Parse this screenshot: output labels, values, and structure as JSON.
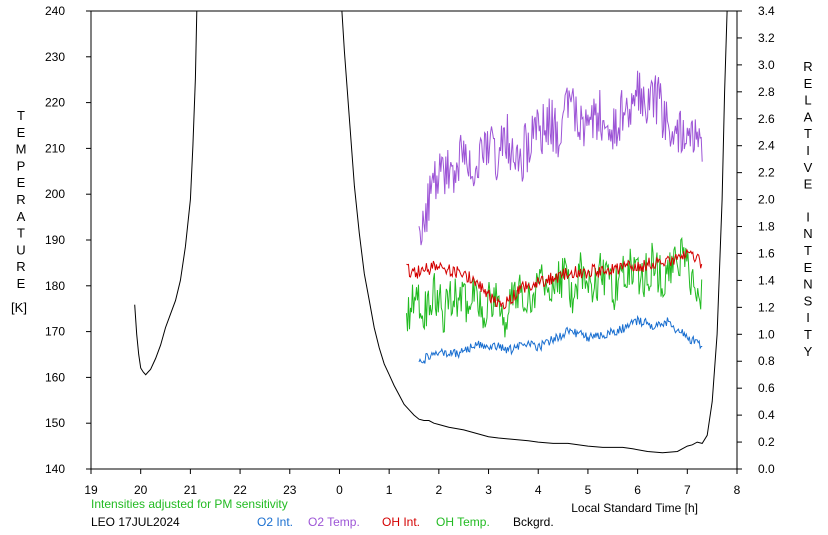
{
  "chart_data": {
    "type": "line",
    "xlabel": "Local Standard Time [h]",
    "ylabel_left": "TEMPERATURE",
    "ylabel_left_unit": "[K]",
    "ylabel_right": "RELATIVE INTENSITY",
    "x_ticks": [
      19,
      20,
      21,
      22,
      23,
      0,
      1,
      2,
      3,
      4,
      5,
      6,
      7,
      8
    ],
    "x_tick_labels": [
      "19",
      "20",
      "21",
      "22",
      "23",
      "0",
      "1",
      "2",
      "3",
      "4",
      "5",
      "6",
      "7",
      "8"
    ],
    "xlim": [
      19,
      32
    ],
    "ylim_left": [
      140,
      240
    ],
    "y_ticks_left": [
      140,
      150,
      160,
      170,
      180,
      190,
      200,
      210,
      220,
      230,
      240
    ],
    "ylim_right": [
      0.0,
      3.4
    ],
    "y_ticks_right": [
      "0.0",
      "0.2",
      "0.4",
      "0.6",
      "0.8",
      "1.0",
      "1.2",
      "1.4",
      "1.6",
      "1.8",
      "2.0",
      "2.2",
      "2.4",
      "2.6",
      "2.8",
      "3.0",
      "3.2",
      "3.4"
    ],
    "note": "Intensities adjusted for PM sensitivity",
    "station": "LEO 17JUL2024",
    "legend": [
      {
        "name": "O2 Int.",
        "color": "#1a6fd0"
      },
      {
        "name": "O2 Temp.",
        "color": "#9d55d6"
      },
      {
        "name": "OH Int.",
        "color": "#d40000"
      },
      {
        "name": "OH Temp.",
        "color": "#22bb22"
      },
      {
        "name": "Bckgrd.",
        "color": "#000000"
      }
    ],
    "series": [
      {
        "name": "Bckgrd.",
        "axis": "right",
        "color": "#000000",
        "x": [
          19.88,
          19.92,
          19.96,
          20.0,
          20.05,
          20.1,
          20.15,
          20.2,
          20.3,
          20.4,
          20.5,
          20.6,
          20.7,
          20.8,
          20.9,
          21.0,
          21.05,
          21.1,
          21.13,
          24.05,
          24.1,
          24.2,
          24.3,
          24.4,
          24.5,
          24.6,
          24.7,
          24.8,
          24.9,
          25.0,
          25.1,
          25.2,
          25.3,
          25.4,
          25.5,
          25.6,
          25.7,
          25.8,
          25.9,
          26.0,
          26.2,
          26.5,
          26.8,
          27.0,
          27.2,
          27.5,
          27.8,
          28.0,
          28.3,
          28.6,
          29.0,
          29.3,
          29.5,
          29.7,
          29.9,
          30.2,
          30.5,
          30.8,
          31.0,
          31.1,
          31.2,
          31.3,
          31.4,
          31.5,
          31.6,
          31.7,
          31.75,
          31.8
        ],
        "y": [
          1.22,
          1.0,
          0.85,
          0.75,
          0.72,
          0.7,
          0.72,
          0.74,
          0.82,
          0.92,
          1.05,
          1.15,
          1.25,
          1.4,
          1.65,
          2.0,
          2.4,
          2.9,
          3.4,
          3.4,
          3.1,
          2.6,
          2.1,
          1.75,
          1.45,
          1.25,
          1.05,
          0.9,
          0.78,
          0.7,
          0.62,
          0.55,
          0.48,
          0.44,
          0.4,
          0.37,
          0.36,
          0.36,
          0.34,
          0.33,
          0.31,
          0.29,
          0.26,
          0.24,
          0.23,
          0.22,
          0.21,
          0.2,
          0.19,
          0.19,
          0.17,
          0.16,
          0.16,
          0.16,
          0.15,
          0.13,
          0.12,
          0.13,
          0.17,
          0.18,
          0.2,
          0.19,
          0.25,
          0.5,
          1.0,
          2.0,
          2.8,
          3.4
        ]
      },
      {
        "name": "O2 Temp.",
        "axis": "left",
        "color": "#9d55d6",
        "x": [
          25.6,
          25.7,
          25.8,
          26.0,
          26.2,
          26.4,
          26.6,
          26.8,
          27.0,
          27.2,
          27.4,
          27.6,
          27.8,
          28.0,
          28.2,
          28.4,
          28.6,
          28.8,
          29.0,
          29.2,
          29.4,
          29.6,
          29.8,
          30.0,
          30.2,
          30.4,
          30.6,
          30.8,
          31.0,
          31.2,
          31.3
        ],
        "y": [
          195,
          190,
          200,
          203,
          205,
          207,
          209,
          206,
          210,
          208,
          212,
          207,
          211,
          213,
          216,
          214,
          220,
          216,
          212,
          218,
          214,
          216,
          219,
          222,
          218,
          221,
          215,
          213,
          212,
          210,
          208
        ]
      },
      {
        "name": "OH Temp.",
        "axis": "left",
        "color": "#22bb22",
        "x": [
          25.35,
          25.5,
          25.7,
          25.9,
          26.1,
          26.3,
          26.5,
          26.7,
          26.9,
          27.1,
          27.3,
          27.5,
          27.7,
          27.9,
          28.1,
          28.3,
          28.5,
          28.7,
          28.9,
          29.1,
          29.3,
          29.5,
          29.7,
          29.9,
          30.1,
          30.3,
          30.5,
          30.7,
          30.9,
          31.1,
          31.3
        ],
        "y": [
          171,
          177,
          175,
          179,
          174,
          178,
          176,
          180,
          175,
          178,
          173,
          177,
          179,
          177,
          183,
          180,
          182,
          178,
          184,
          180,
          183,
          179,
          182,
          184,
          181,
          185,
          182,
          183,
          186,
          182,
          179
        ]
      },
      {
        "name": "OH Int.",
        "axis": "right",
        "color": "#d40000",
        "x": [
          25.35,
          25.5,
          25.7,
          25.9,
          26.1,
          26.3,
          26.5,
          26.7,
          26.9,
          27.1,
          27.3,
          27.5,
          27.7,
          27.9,
          28.1,
          28.3,
          28.5,
          28.7,
          28.9,
          29.1,
          29.3,
          29.5,
          29.7,
          29.9,
          30.1,
          30.3,
          30.5,
          30.7,
          30.9,
          31.1,
          31.3
        ],
        "y": [
          1.48,
          1.45,
          1.48,
          1.5,
          1.48,
          1.47,
          1.45,
          1.4,
          1.32,
          1.26,
          1.22,
          1.28,
          1.35,
          1.38,
          1.4,
          1.42,
          1.44,
          1.46,
          1.45,
          1.48,
          1.46,
          1.5,
          1.48,
          1.52,
          1.5,
          1.53,
          1.55,
          1.52,
          1.6,
          1.58,
          1.52
        ]
      },
      {
        "name": "O2 Int.",
        "axis": "right",
        "color": "#1a6fd0",
        "x": [
          25.6,
          25.8,
          26.0,
          26.2,
          26.4,
          26.6,
          26.8,
          27.0,
          27.2,
          27.4,
          27.6,
          27.8,
          28.0,
          28.2,
          28.4,
          28.6,
          28.8,
          29.0,
          29.2,
          29.4,
          29.6,
          29.8,
          30.0,
          30.2,
          30.4,
          30.6,
          30.8,
          31.0,
          31.2,
          31.3
        ],
        "y": [
          0.78,
          0.84,
          0.88,
          0.85,
          0.86,
          0.9,
          0.92,
          0.89,
          0.91,
          0.88,
          0.91,
          0.93,
          0.9,
          0.95,
          0.98,
          1.02,
          1.01,
          0.98,
          0.98,
          1.0,
          1.03,
          1.06,
          1.1,
          1.08,
          1.06,
          1.09,
          1.03,
          0.98,
          0.93,
          0.9
        ]
      }
    ]
  }
}
